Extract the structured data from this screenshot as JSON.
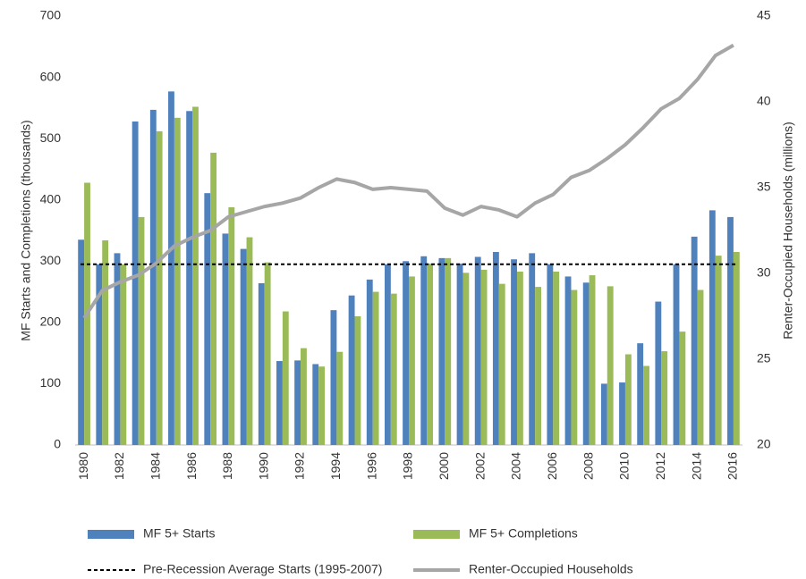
{
  "chart_data": {
    "type": "bar",
    "y_label": "MF Starts and Completions (thousands)",
    "y2_label": "Renter-Occupied Households (millions)",
    "categories": [
      "1980",
      null,
      "1982",
      null,
      "1984",
      null,
      "1986",
      null,
      "1988",
      null,
      "1990",
      null,
      "1992",
      null,
      "1994",
      null,
      "1996",
      null,
      "1998",
      null,
      "2000",
      null,
      "2002",
      null,
      "2004",
      null,
      "2006",
      null,
      "2008",
      null,
      "2010",
      null,
      "2012",
      null,
      "2014",
      null,
      "2016"
    ],
    "series": [
      {
        "name": "MF 5+ Starts",
        "type": "bar",
        "color": "#4f81bd",
        "values": [
          335,
          295,
          313,
          528,
          547,
          577,
          545,
          411,
          345,
          320,
          264,
          137,
          138,
          132,
          220,
          244,
          270,
          295,
          300,
          308,
          305,
          296,
          307,
          315,
          303,
          313,
          295,
          275,
          265,
          100,
          102,
          166,
          234,
          295,
          340,
          383,
          372
        ]
      },
      {
        "name": "MF 5+ Completions",
        "type": "bar",
        "color": "#9bbb59",
        "values": [
          428,
          334,
          295,
          372,
          512,
          534,
          552,
          477,
          388,
          339,
          298,
          218,
          158,
          128,
          152,
          210,
          250,
          247,
          275,
          296,
          305,
          281,
          286,
          263,
          283,
          258,
          283,
          253,
          277,
          259,
          148,
          129,
          153,
          185,
          253,
          309,
          315
        ]
      },
      {
        "name": "Pre-Recession Average Starts (1995-2007)",
        "type": "hline",
        "color": "#000000",
        "value": 295
      },
      {
        "name": "Renter-Occupied Households",
        "type": "line",
        "color": "#a6a6a6",
        "axis": "y2",
        "values": [
          27.4,
          29.0,
          29.5,
          29.9,
          30.6,
          31.6,
          32.1,
          32.5,
          33.3,
          33.6,
          33.9,
          34.1,
          34.4,
          35.0,
          35.5,
          35.3,
          34.9,
          35.0,
          34.9,
          34.8,
          33.8,
          33.4,
          33.9,
          33.7,
          33.3,
          34.1,
          34.6,
          35.6,
          36.0,
          36.7,
          37.5,
          38.5,
          39.6,
          40.2,
          41.3,
          42.7,
          43.3
        ]
      }
    ],
    "ylim": [
      0,
      700
    ],
    "yticks": [
      0,
      100,
      200,
      300,
      400,
      500,
      600,
      700
    ],
    "y2lim": [
      20,
      45
    ],
    "y2ticks": [
      20,
      25,
      30,
      35,
      40,
      45
    ],
    "legend": "bottom"
  }
}
